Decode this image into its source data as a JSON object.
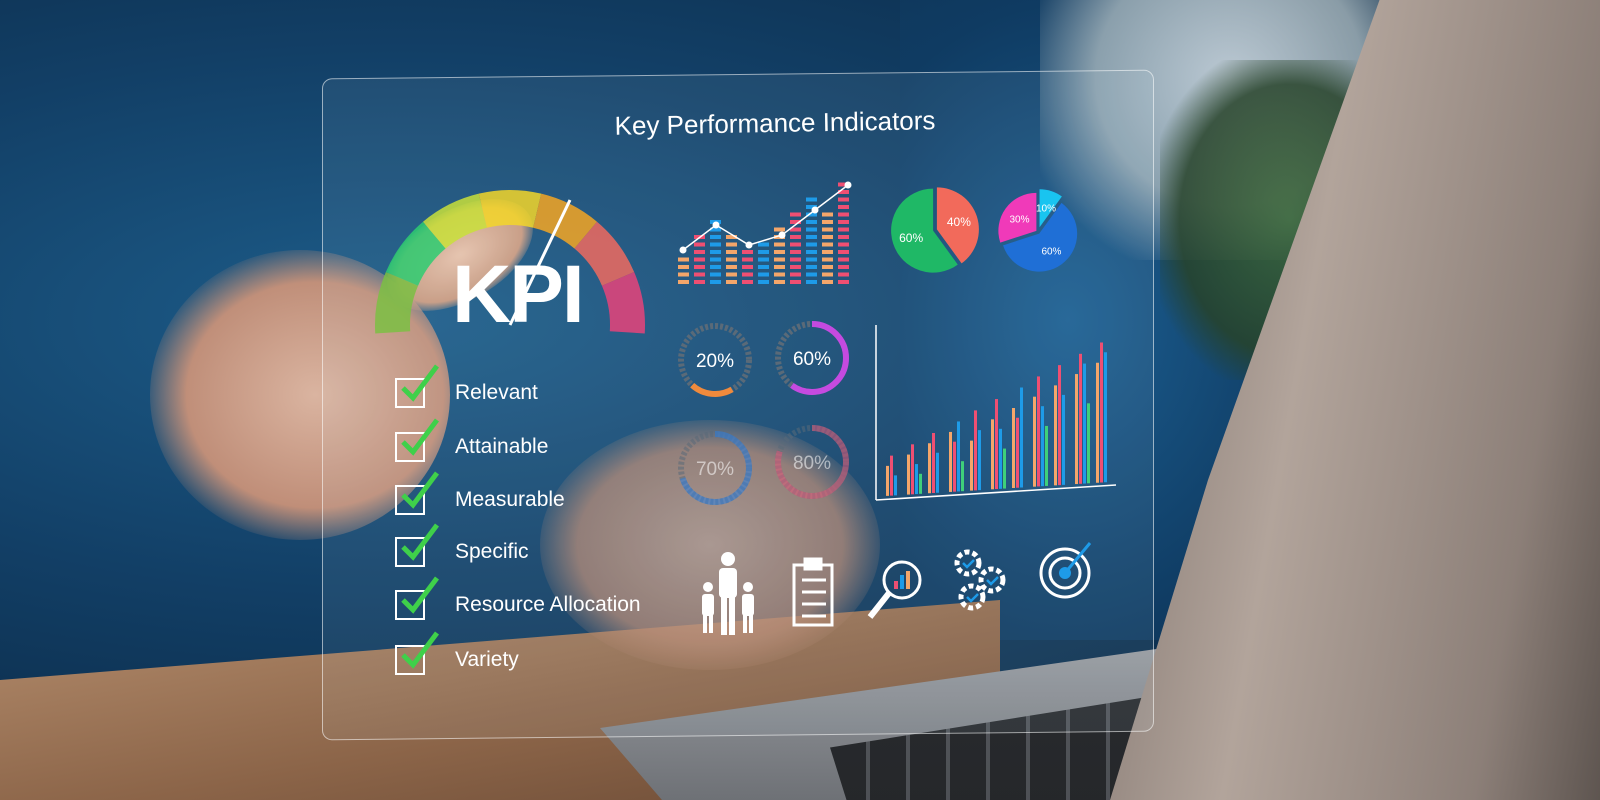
{
  "title": "Key Performance Indicators",
  "kpi_label": "KPI",
  "checklist": [
    "Relevant",
    "Attainable",
    "Measurable",
    "Specific",
    "Resource Allocation",
    "Variety"
  ],
  "gauge": {
    "colors": [
      "#7bc043",
      "#2ecc71",
      "#c9e03a",
      "#f3d629",
      "#f5a623",
      "#f06a5f",
      "#e8437a"
    ]
  },
  "pie_charts": [
    {
      "slices": [
        {
          "label": "40%",
          "value": 40,
          "color": "#f26a5b"
        },
        {
          "label": "60%",
          "value": 60,
          "color": "#1fb866"
        }
      ]
    },
    {
      "slices": [
        {
          "label": "10%",
          "value": 10,
          "color": "#19c4f0"
        },
        {
          "label": "60%",
          "value": 60,
          "color": "#1f6fd6"
        },
        {
          "label": "30%",
          "value": 30,
          "color": "#f03ab9"
        }
      ]
    }
  ],
  "donuts": [
    {
      "label": "20%",
      "value": 20,
      "color": "#f08a3c"
    },
    {
      "label": "60%",
      "value": 60,
      "color": "#c54ae0"
    },
    {
      "label": "70%",
      "value": 70,
      "color": "#2d7fe0"
    },
    {
      "label": "80%",
      "value": 80,
      "color": "#e05a7a"
    }
  ],
  "bar_line_chart": {
    "columns": [
      4,
      7,
      9,
      7,
      5,
      6,
      8,
      10,
      12,
      10,
      14
    ],
    "line": [
      2,
      4.5,
      2.5,
      3.5,
      6,
      8.5
    ],
    "colors": [
      "#f4a66a",
      "#ef4f72",
      "#1e9be8"
    ]
  },
  "grouped_bar_chart": {
    "groups": [
      [
        3,
        4,
        2
      ],
      [
        4,
        5,
        3,
        2
      ],
      [
        5,
        6,
        4
      ],
      [
        6,
        5,
        7,
        3
      ],
      [
        5,
        8,
        6
      ],
      [
        7,
        9,
        6,
        4
      ],
      [
        8,
        7,
        10
      ],
      [
        9,
        11,
        8,
        6
      ],
      [
        10,
        12,
        9
      ],
      [
        11,
        13,
        12,
        8
      ],
      [
        12,
        14,
        13
      ]
    ],
    "colors": [
      "#f4a66a",
      "#ef4f72",
      "#1e9be8",
      "#3fd07a"
    ]
  },
  "icons": [
    "people-icon",
    "clipboard-icon",
    "magnifier-chart-icon",
    "gears-icon",
    "target-icon"
  ]
}
